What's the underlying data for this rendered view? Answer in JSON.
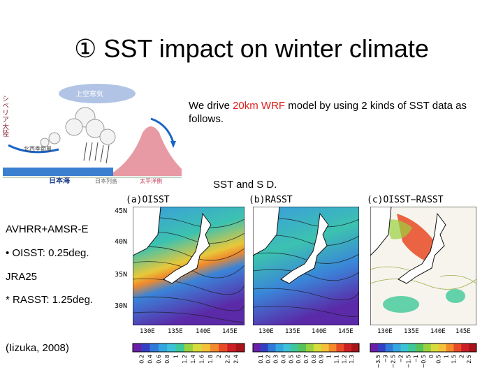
{
  "slide": {
    "title": "① SST impact on winter climate",
    "intro": {
      "pre": "We drive ",
      "hl1": "20km WRF",
      "mid": " model by using 2 kinds of SST data as follows."
    },
    "sst_caption": "SST and S D."
  },
  "schematic": {
    "upper_air": "上空寒気",
    "siberia": "シベリア大陸",
    "nw_monsoon": "北西季節風",
    "sea_of_japan": "日本海",
    "japan_islands": "日本列島",
    "pacific": "太平洋側",
    "colors": {
      "sky": "#8aa8d8",
      "sea": "#3a7fd0",
      "mountain": "#e89aa4",
      "arrow": "#1a63c6"
    }
  },
  "sidebar": {
    "line1": "AVHRR+AMSR-E",
    "line2": "• OISST: 0.25deg.",
    "line3": "JRA25",
    "line4": "* RASST: 1.25deg.",
    "citation": "(Iizuka, 2008)"
  },
  "map_axes": {
    "lat_labels": [
      "45N",
      "40N",
      "35N",
      "30N"
    ],
    "lon_labels": [
      "130E",
      "135E",
      "140E",
      "145E"
    ]
  },
  "panels": [
    {
      "title": "(a)OISST",
      "colorbar": [
        "0.2",
        "0.4",
        "0.6",
        "0.8",
        "1",
        "1.2",
        "1.4",
        "1.6",
        "1.8",
        "2",
        "2.2",
        "2.4"
      ]
    },
    {
      "title": "(b)RASST",
      "colorbar": [
        "0.1",
        "0.2",
        "0.3",
        "0.4",
        "0.5",
        "0.6",
        "0.7",
        "0.8",
        "0.9",
        "1",
        "1.1",
        "1.2",
        "1.3"
      ]
    },
    {
      "title": "(c)OISST−RASST",
      "colorbar": [
        "−3.5",
        "−3",
        "−2.5",
        "−2",
        "−1.5",
        "−1",
        "−0.5",
        "0",
        "0.5",
        "1",
        "1.5",
        "2",
        "2.5"
      ]
    }
  ],
  "colorbar_palette": [
    "#6a1fa8",
    "#3340c4",
    "#2f7ad8",
    "#33a6e0",
    "#3cc2d6",
    "#3ec89a",
    "#56c25a",
    "#9ad23e",
    "#d8dc3a",
    "#f4c23a",
    "#f48a2c",
    "#e84a26",
    "#cc1f24",
    "#a8121a"
  ]
}
